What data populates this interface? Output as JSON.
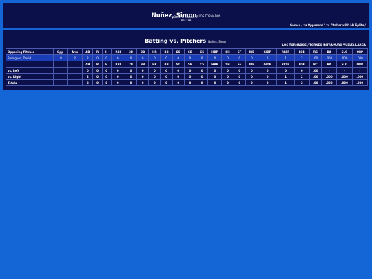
{
  "player": {
    "name": "Nuñez, Simon",
    "team": "LOS TORNADOS",
    "bats_throws": "Bats: R Throws: R",
    "pos": "Pos: 3B"
  },
  "nav": [
    "Games",
    "vs Opponent",
    "vs Pitcher with LR Splits"
  ],
  "nav_sep": " / ",
  "section": {
    "title": "Batting vs. Pitchers",
    "player": "Nuñez, Simon",
    "team_league": "LOS TORNADOS / TORNEO INTRAMURO VUELTA LARGA"
  },
  "table": {
    "headers": [
      "Opposing Pitcher",
      "Opp",
      "Arm",
      "AB",
      "R",
      "H",
      "RBI",
      "2B",
      "3B",
      "HR",
      "BB",
      "SO",
      "SB",
      "CS",
      "HBP",
      "SH",
      "SF",
      "IBB",
      "GIDP",
      "RLSP",
      "LOB",
      "RC",
      "BA",
      "SLG",
      "OBP"
    ],
    "pitcher_rows": [
      [
        "Rodriguez, David",
        "LP",
        "R",
        "2",
        "0",
        "0",
        "0",
        "0",
        "0",
        "0",
        "0",
        "0",
        "0",
        "0",
        "0",
        "0",
        "0",
        "0",
        "0",
        "1",
        "2",
        ".00",
        ".000",
        ".000",
        ".000"
      ]
    ],
    "sub_headers": [
      "AB",
      "R",
      "H",
      "RBI",
      "2B",
      "3B",
      "HR",
      "BB",
      "SO",
      "SB",
      "CS",
      "HBP",
      "SH",
      "SF",
      "IBB",
      "GIDP",
      "RLSP",
      "LOB",
      "RC",
      "BA",
      "SLG",
      "OBP"
    ],
    "summary_rows": [
      {
        "label": "vs. Left",
        "values": [
          "0",
          "0",
          "0",
          "0",
          "0",
          "0",
          "0",
          "0",
          "0",
          "0",
          "0",
          "0",
          "0",
          "0",
          "0",
          "0",
          "0",
          "0",
          ".00",
          "-",
          "-",
          "-"
        ]
      },
      {
        "label": "vs. Right",
        "values": [
          "2",
          "0",
          "0",
          "0",
          "0",
          "0",
          "0",
          "0",
          "0",
          "0",
          "0",
          "0",
          "0",
          "0",
          "0",
          "0",
          "1",
          "2",
          ".00",
          ".000",
          ".000",
          ".000"
        ]
      },
      {
        "label": "Totals",
        "values": [
          "2",
          "0",
          "0",
          "0",
          "0",
          "0",
          "0",
          "0",
          "0",
          "0",
          "0",
          "0",
          "0",
          "0",
          "0",
          "0",
          "1",
          "2",
          ".00",
          ".000",
          ".000",
          ".000"
        ]
      }
    ]
  }
}
